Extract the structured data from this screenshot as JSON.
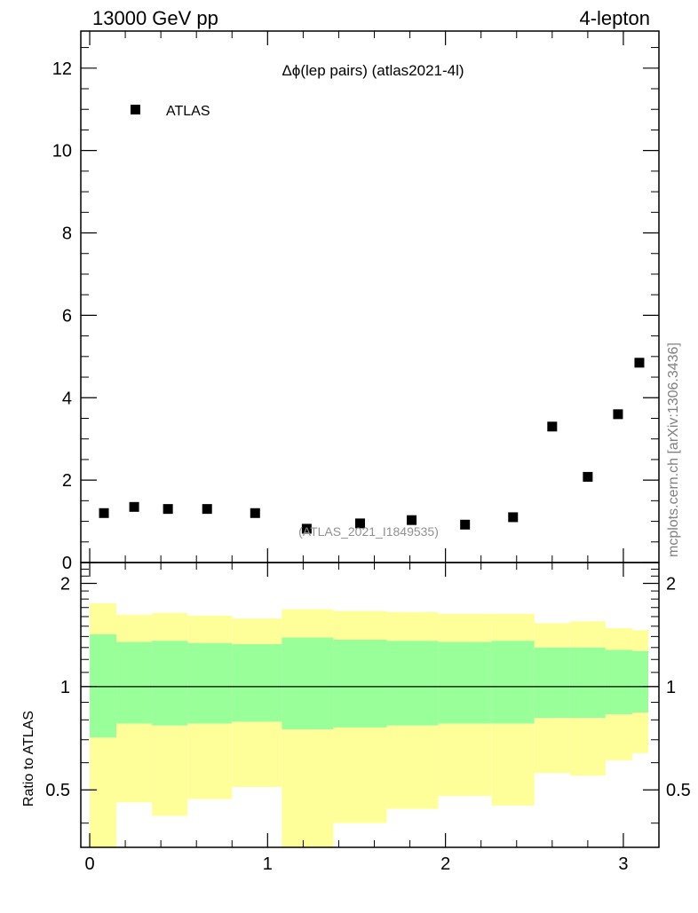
{
  "header": {
    "left": "13000 GeV pp",
    "right": "4-lepton"
  },
  "side_label": "mcplots.cern.ch [arXiv:1306.3436]",
  "chart_data": [
    {
      "type": "scatter",
      "title": "Δϕ(lep pairs) (atlas2021-4l)",
      "watermark": "(ATLAS_2021_I1849535)",
      "legend": {
        "placement": "top-left",
        "entries": [
          "ATLAS"
        ]
      },
      "xlim": [
        -0.05,
        3.2
      ],
      "ylim": [
        0,
        12.9
      ],
      "xticks": [
        0,
        1,
        2,
        3
      ],
      "yticks": [
        0,
        2,
        4,
        6,
        8,
        10,
        12
      ],
      "ytick_labels": [
        "0",
        "2",
        "4",
        "6",
        "8",
        "10",
        "12"
      ],
      "series": [
        {
          "name": "ATLAS",
          "marker": "square",
          "color": "#000000",
          "x": [
            0.08,
            0.25,
            0.44,
            0.66,
            0.93,
            1.22,
            1.52,
            1.81,
            2.11,
            2.38,
            2.6,
            2.8,
            2.97,
            3.09
          ],
          "y": [
            1.2,
            1.35,
            1.3,
            1.3,
            1.2,
            0.82,
            0.95,
            1.03,
            0.92,
            1.1,
            3.3,
            2.08,
            3.6,
            4.85
          ]
        }
      ]
    },
    {
      "type": "area",
      "ylabel": "Ratio to ATLAS",
      "xlim": [
        -0.05,
        3.2
      ],
      "ylim": [
        0.34,
        2.3
      ],
      "xticks": [
        0,
        1,
        2,
        3
      ],
      "xtick_labels": [
        "0",
        "1",
        "2",
        "3"
      ],
      "yticks": [
        0.5,
        1,
        2
      ],
      "ytick_labels": [
        "0.5",
        "1",
        "2"
      ],
      "reference_line": 1,
      "band_colors": {
        "inner": "#99ff99",
        "outer": "#ffff99"
      },
      "bin_edges": [
        0.0,
        0.15,
        0.35,
        0.55,
        0.8,
        1.08,
        1.37,
        1.67,
        1.96,
        2.26,
        2.5,
        2.7,
        2.9,
        3.05,
        3.14
      ],
      "outer_upper": [
        1.75,
        1.62,
        1.64,
        1.61,
        1.58,
        1.68,
        1.66,
        1.65,
        1.63,
        1.63,
        1.53,
        1.55,
        1.48,
        1.46
      ],
      "inner_upper": [
        1.42,
        1.35,
        1.36,
        1.34,
        1.33,
        1.39,
        1.37,
        1.36,
        1.35,
        1.36,
        1.3,
        1.3,
        1.28,
        1.27
      ],
      "inner_lower": [
        0.71,
        0.78,
        0.77,
        0.78,
        0.79,
        0.75,
        0.76,
        0.77,
        0.78,
        0.78,
        0.81,
        0.81,
        0.83,
        0.84
      ],
      "outer_lower": [
        0.34,
        0.46,
        0.42,
        0.47,
        0.51,
        0.34,
        0.4,
        0.44,
        0.48,
        0.45,
        0.56,
        0.55,
        0.61,
        0.64
      ]
    }
  ]
}
